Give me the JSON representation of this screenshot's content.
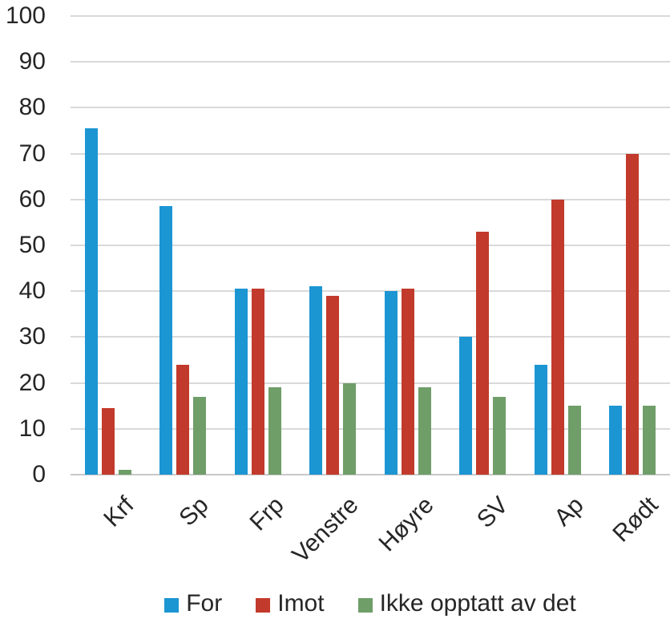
{
  "chart_data": {
    "type": "bar",
    "title": "",
    "categories": [
      "Krf",
      "Sp",
      "Frp",
      "Venstre",
      "Høyre",
      "SV",
      "Ap",
      "Rødt"
    ],
    "series": [
      {
        "name": "For",
        "color": "#1c95d3",
        "values": [
          75.5,
          58.5,
          40.5,
          41,
          40,
          30,
          24,
          15
        ]
      },
      {
        "name": "Imot",
        "color": "#c23a2b",
        "values": [
          14.5,
          24,
          40.5,
          39,
          40.5,
          53,
          60,
          70
        ]
      },
      {
        "name": "Ikke opptatt av det",
        "color": "#6f9e69",
        "values": [
          1,
          17,
          19,
          20,
          19,
          17,
          15,
          15
        ]
      }
    ],
    "xlabel": "",
    "ylabel": "",
    "ylim": [
      0,
      100
    ],
    "ytick_step": 10,
    "ytick_labels": [
      "0",
      "10",
      "20",
      "30",
      "40",
      "50",
      "60",
      "70",
      "80",
      "90",
      "100"
    ],
    "grid": true,
    "legend_position": "bottom"
  },
  "styles": {
    "background": "#ffffff",
    "grid_color": "#d9d9d9",
    "zero_line_color": "#c9c9c9",
    "text_color": "#262626"
  }
}
